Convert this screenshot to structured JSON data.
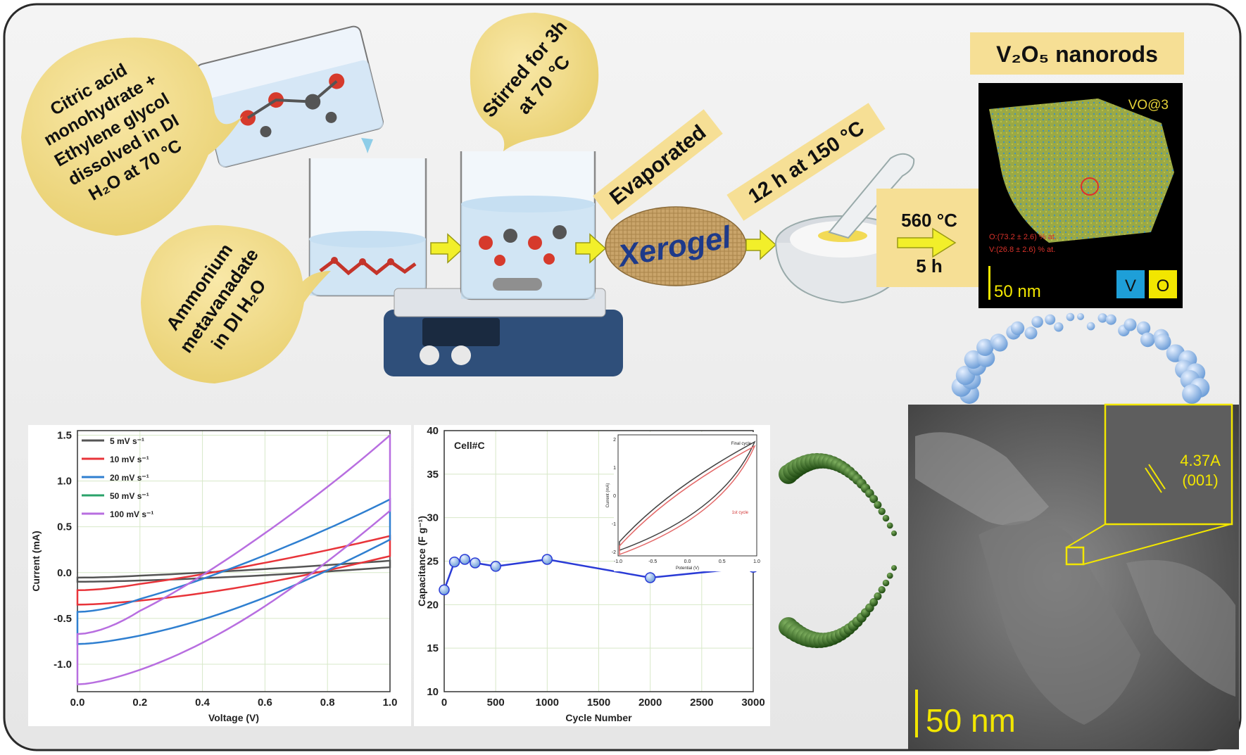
{
  "process": {
    "bubble_citric": [
      "Citric acid",
      "monohydrate +",
      "Ethylene glycol",
      "dissolved in DI",
      "H₂O at 70 °C"
    ],
    "bubble_stirred": [
      "Stirred for 3h",
      "at 70 °C"
    ],
    "bubble_ammonium": [
      "Ammonium",
      "metavanadate",
      "in DI H₂O"
    ],
    "label_evaporated": "Evaporated",
    "label_xerogel": "Xerogel",
    "label_12h": "12 h at 150 °C",
    "label_temp": "560 °C",
    "label_time": "5 h"
  },
  "eds": {
    "title": "V₂O₅ nanorods",
    "sample": "VO@3",
    "comp_o": "O:(73.2 ± 2.6) % at.",
    "comp_v": "V:(26.8 ± 2.6) % at.",
    "scale": "50 nm",
    "legend_v": "V",
    "legend_o": "O",
    "color_v": "#1e9fd8",
    "color_o": "#f2e600"
  },
  "tem": {
    "scale": "50 nm",
    "dspacing": "4.37A",
    "plane": "(001)"
  },
  "chart_data": [
    {
      "type": "line",
      "xlabel": "Voltage (V)",
      "ylabel": "Current (mA)",
      "xlim": [
        0.0,
        1.0
      ],
      "ylim": [
        -1.3,
        1.55
      ],
      "xticks": [
        "0.0",
        "0.2",
        "0.4",
        "0.6",
        "0.8",
        "1.0"
      ],
      "yticks": [
        "-1.0",
        "-0.5",
        "0.0",
        "0.5",
        "1.0",
        "1.5"
      ],
      "grid": true,
      "legend": "top-left",
      "series": [
        {
          "name": "5 mV s⁻¹",
          "color": "#555555",
          "vmax_upper": 0.13,
          "vmin_lower": -0.1
        },
        {
          "name": "10 mV s⁻¹",
          "color": "#e8343a",
          "vmax_upper": 0.4,
          "vmin_lower": -0.35
        },
        {
          "name": "20 mV s⁻¹",
          "color": "#2f7fd0",
          "vmax_upper": 0.8,
          "vmin_lower": -0.78
        },
        {
          "name": "50 mV s⁻¹",
          "color": "#2aa26a",
          "vmax_upper": null,
          "vmin_lower": null
        },
        {
          "name": "100 mV s⁻¹",
          "color": "#b86ee0",
          "vmax_upper": 1.5,
          "vmin_lower": -1.22
        }
      ]
    },
    {
      "type": "line",
      "title": "Cell#C",
      "xlabel": "Cycle Number",
      "ylabel": "Capacitance (F g⁻¹)",
      "xlim": [
        0,
        3000
      ],
      "ylim": [
        10,
        40
      ],
      "xticks": [
        "0",
        "500",
        "1000",
        "1500",
        "2000",
        "2500",
        "3000"
      ],
      "yticks": [
        "10",
        "15",
        "20",
        "25",
        "30",
        "35",
        "40"
      ],
      "grid": true,
      "x": [
        0,
        100,
        200,
        300,
        500,
        1000,
        2000,
        3000
      ],
      "y": [
        21.7,
        24.9,
        25.2,
        24.8,
        24.4,
        25.2,
        23.1,
        24.3
      ],
      "color": "#2a3bd6",
      "inset": {
        "xlabel": "Potential (V)",
        "ylabel": "Current (mA)",
        "xticks": [
          "-1.0",
          "-0.5",
          "0.0",
          "0.5",
          "1.0"
        ],
        "yticks": [
          "-2",
          "-1",
          "0",
          "1",
          "2"
        ],
        "legend": [
          "Final cycle",
          "1st cycle"
        ]
      }
    }
  ]
}
